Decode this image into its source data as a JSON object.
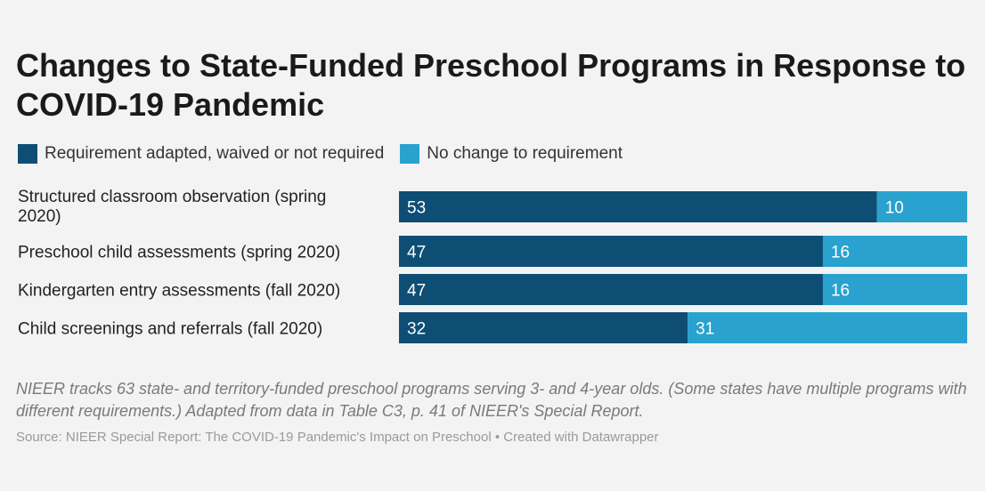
{
  "title": "Changes to State-Funded Preschool Programs in Response to COVID-19 Pandemic",
  "legend": [
    {
      "label": "Requirement adapted, waived or not required",
      "color": "#0e4e74"
    },
    {
      "label": "No change to requirement",
      "color": "#29a2cf"
    }
  ],
  "chart_data": {
    "type": "bar",
    "orientation": "horizontal",
    "stacked": true,
    "categories": [
      [
        "Structured classroom observation (spring",
        "2020)"
      ],
      [
        "Preschool child assessments (spring 2020)"
      ],
      [
        "Kindergarten entry assessments (fall 2020)"
      ],
      [
        "Child screenings and referrals (fall 2020)"
      ]
    ],
    "series": [
      {
        "name": "Requirement adapted, waived or not required",
        "color": "#0e4e74",
        "values": [
          53,
          47,
          47,
          32
        ]
      },
      {
        "name": "No change to requirement",
        "color": "#29a2cf",
        "values": [
          10,
          16,
          16,
          31
        ]
      }
    ],
    "xlim": [
      0,
      63
    ],
    "grid": false,
    "legend_position": "top-left"
  },
  "note": "NIEER tracks 63 state- and territory-funded preschool programs serving 3- and 4-year olds. (Some states have multiple programs with different requirements.) Adapted from data in Table C3, p. 41 of NIEER's Special Report.",
  "source": "Source: NIEER Special Report: The COVID-19 Pandemic's Impact on Preschool • Created with Datawrapper"
}
